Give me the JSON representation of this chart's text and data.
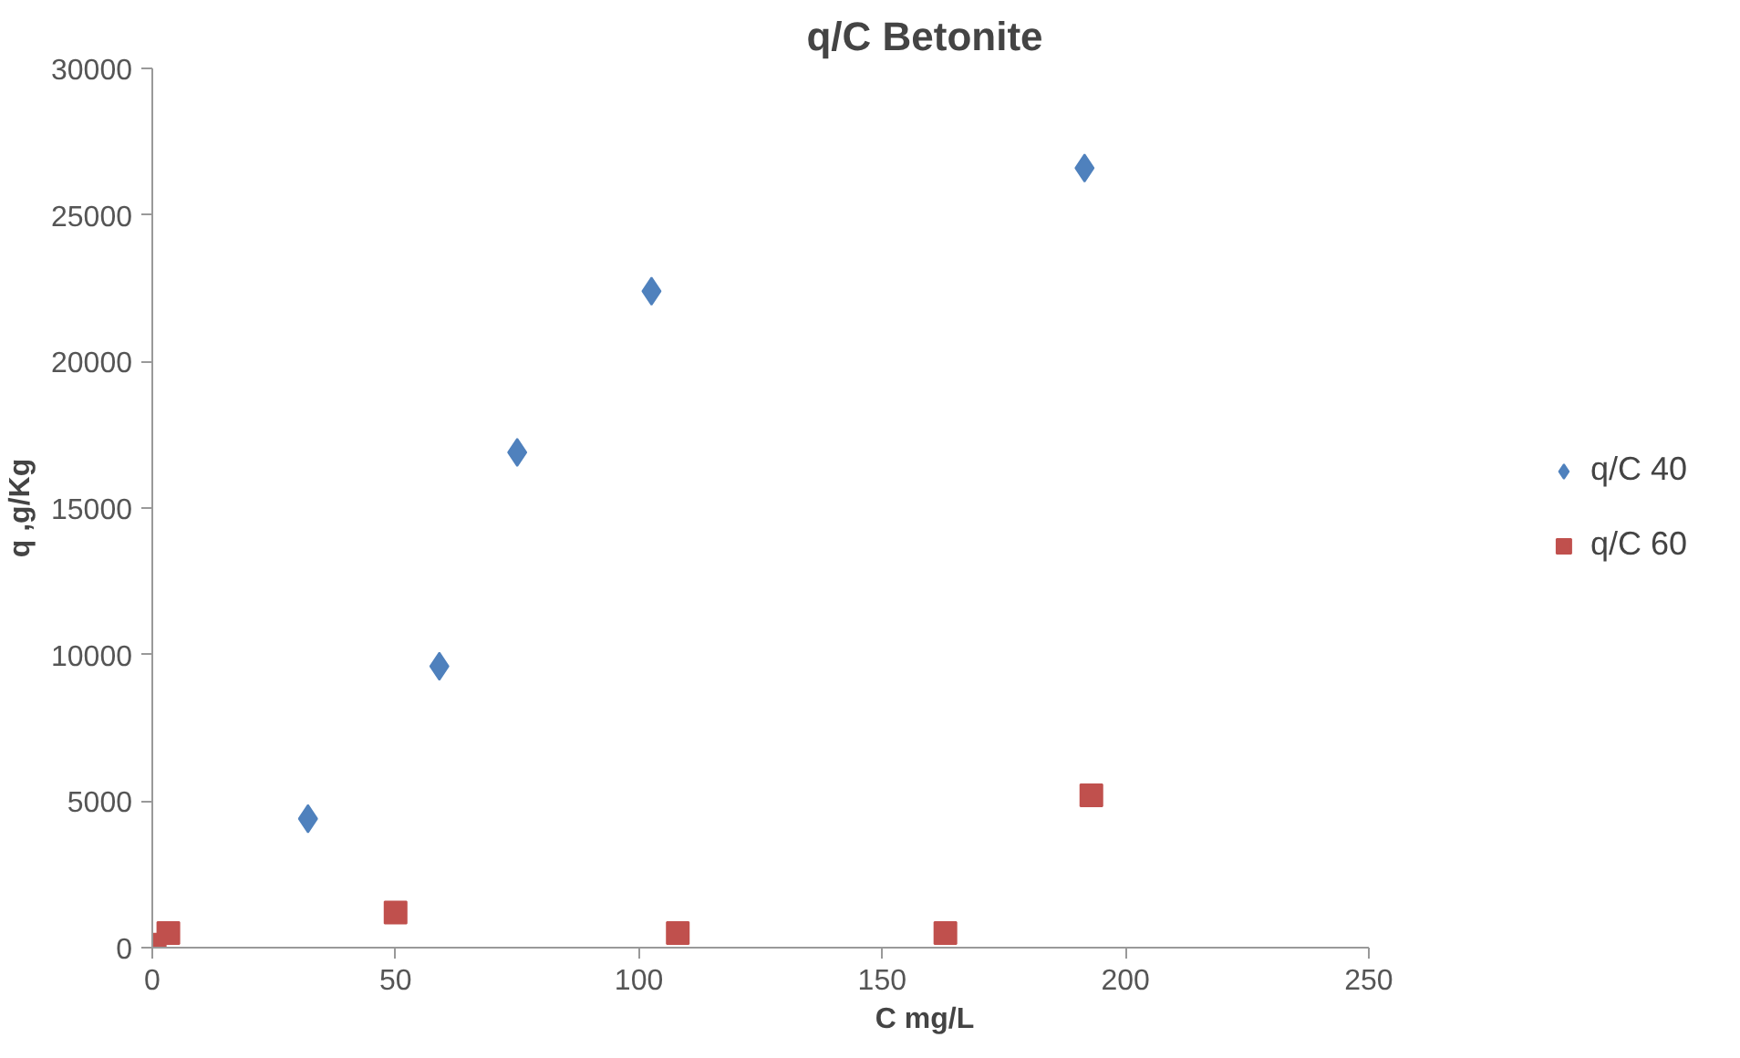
{
  "chart_data": {
    "type": "scatter",
    "title": "q/C Betonite",
    "xlabel": "C mg/L",
    "ylabel": "q ,g/Kg",
    "xlim": [
      0,
      250
    ],
    "xticks": [
      0,
      50,
      100,
      150,
      200,
      250
    ],
    "ylim": [
      0,
      30000
    ],
    "yticks": [
      0,
      5000,
      10000,
      15000,
      20000,
      25000,
      30000
    ],
    "grid": false,
    "legend": "right",
    "series": [
      {
        "name": "q/C 40",
        "color": "#4f81bd",
        "marker": "diamond",
        "x": [
          32,
          59,
          75,
          102.6,
          191.6
        ],
        "values": [
          4400,
          9600,
          16900,
          22400,
          26600
        ]
      },
      {
        "name": "q/C 60",
        "color": "#c0504d",
        "marker": "square",
        "x": [
          0.5,
          3.3,
          50,
          108,
          163,
          193
        ],
        "values": [
          100,
          500,
          1200,
          500,
          500,
          5200
        ]
      }
    ]
  }
}
